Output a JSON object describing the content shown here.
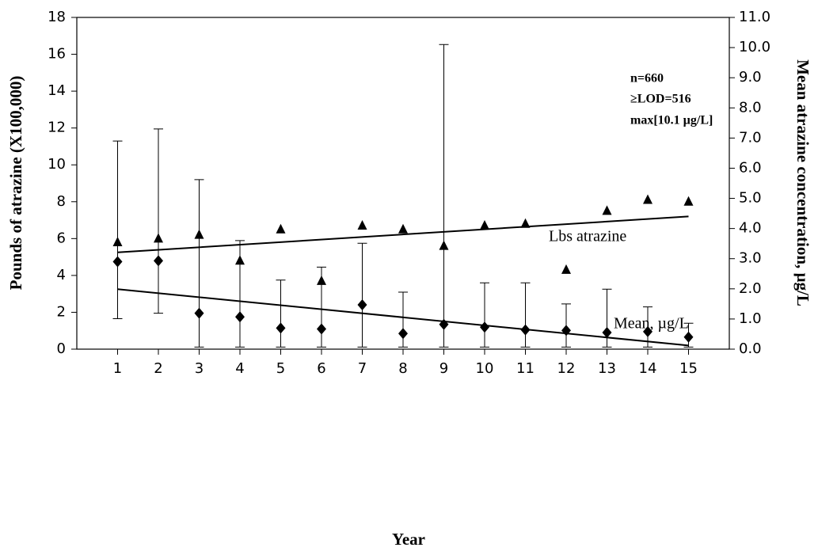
{
  "chart_data": {
    "type": "line",
    "x_label": "Year",
    "y_label": "Pounds of atrazine (X100,000)",
    "y2_label": "Mean atrazine concentration, µg/L",
    "x": [
      1,
      2,
      3,
      4,
      5,
      6,
      7,
      8,
      9,
      10,
      11,
      12,
      13,
      14,
      15
    ],
    "xlim": [
      0,
      16
    ],
    "xticks": [
      1,
      2,
      3,
      4,
      5,
      6,
      7,
      8,
      9,
      10,
      11,
      12,
      13,
      14,
      15
    ],
    "ylim": [
      0,
      18
    ],
    "yticks": [
      0,
      2,
      4,
      6,
      8,
      10,
      12,
      14,
      16,
      18
    ],
    "y2lim": [
      0,
      11
    ],
    "y2ticks": [
      {
        "value": 0,
        "label": "0.0"
      },
      {
        "value": 1,
        "label": "1.0"
      },
      {
        "value": 2,
        "label": "2.0"
      },
      {
        "value": 3,
        "label": "3.0"
      },
      {
        "value": 4,
        "label": "4.0"
      },
      {
        "value": 5,
        "label": "5.0"
      },
      {
        "value": 6,
        "label": "6.0"
      },
      {
        "value": 7,
        "label": "7.0"
      },
      {
        "value": 8,
        "label": "8.0"
      },
      {
        "value": 9,
        "label": "9.0"
      },
      {
        "value": 10,
        "label": "10.0"
      },
      {
        "value": 11,
        "label": "11.0"
      }
    ],
    "series": [
      {
        "name": "Lbs atrazine",
        "color": "#000000",
        "marker": "triangle",
        "axis": "y",
        "values": [
          5.8,
          6.0,
          6.2,
          4.8,
          6.5,
          3.7,
          6.7,
          6.5,
          5.6,
          6.7,
          6.8,
          4.3,
          7.5,
          8.1,
          8.0
        ],
        "trend": [
          5.25,
          7.2
        ]
      },
      {
        "name": "Mean, µg/L",
        "color": "#000000",
        "marker": "diamond",
        "axis": "y2",
        "values": [
          2.9,
          2.93,
          1.19,
          1.07,
          0.7,
          0.67,
          1.47,
          0.52,
          0.82,
          0.73,
          0.64,
          0.62,
          0.55,
          0.58,
          0.4
        ],
        "lower": [
          1.01,
          1.19,
          0.07,
          0.07,
          0.07,
          0.07,
          0.07,
          0.07,
          0.07,
          0.07,
          0.07,
          0.07,
          0.07,
          0.07,
          0.07
        ],
        "upper": [
          6.9,
          7.3,
          5.62,
          3.6,
          2.29,
          2.72,
          3.51,
          1.89,
          10.1,
          2.2,
          2.2,
          1.5,
          1.99,
          1.4,
          0.86
        ],
        "trend": [
          1.99,
          0.12
        ]
      }
    ],
    "annotations": [
      "n=660",
      "≥LOD=516",
      "max[10.1 µg/L]"
    ]
  }
}
